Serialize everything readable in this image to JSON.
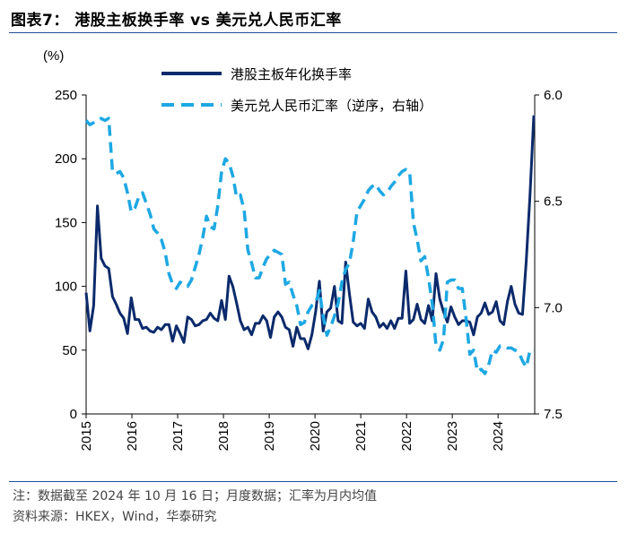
{
  "header": {
    "title": "图表7：  港股主板换手率 vs 美元兑人民币汇率"
  },
  "footer": {
    "note": "注：数据截至 2024 年 10 月 16 日；月度数据；汇率为月内均值",
    "source": "资料来源：HKEX，Wind，华泰研究"
  },
  "colors": {
    "turnover": "#0b2a6b",
    "fx": "#1da8e3",
    "rule": "#1f4e9a"
  },
  "chart_data": {
    "type": "line",
    "title": "港股主板换手率 vs 美元兑人民币汇率",
    "ylabel": "(%)",
    "ylim": [
      0,
      250
    ],
    "yticks": [
      "0",
      "50",
      "100",
      "150",
      "200",
      "250"
    ],
    "y2lim": [
      6.0,
      7.5
    ],
    "y2_inverted": true,
    "y2ticks": [
      "6.0",
      "6.5",
      "7.0",
      "7.5"
    ],
    "x_start": 2015.0,
    "x_end": 2024.8,
    "xticks": [
      "2015",
      "2016",
      "2017",
      "2018",
      "2019",
      "2020",
      "2021",
      "2022",
      "2023",
      "2024"
    ],
    "series": [
      {
        "name": "港股主板年化换手率",
        "axis": "left",
        "style": "solid",
        "values": [
          95,
          65,
          85,
          163,
          122,
          116,
          114,
          92,
          86,
          79,
          75,
          63,
          91,
          74,
          74,
          67,
          68,
          65,
          64,
          68,
          66,
          70,
          70,
          57,
          69,
          63,
          56,
          76,
          74,
          69,
          70,
          73,
          74,
          79,
          75,
          73,
          89,
          74,
          108,
          100,
          87,
          73,
          66,
          68,
          62,
          71,
          71,
          77,
          73,
          60,
          76,
          80,
          76,
          68,
          66,
          53,
          68,
          59,
          59,
          51,
          62,
          80,
          104,
          65,
          80,
          83,
          100,
          73,
          71,
          119,
          94,
          72,
          69,
          71,
          67,
          90,
          80,
          76,
          68,
          71,
          67,
          73,
          67,
          75,
          75,
          112,
          71,
          74,
          86,
          74,
          71,
          85,
          73,
          110,
          90,
          80,
          72,
          84,
          76,
          70,
          73,
          73,
          72,
          62,
          76,
          79,
          87,
          78,
          80,
          88,
          73,
          70,
          88,
          100,
          86,
          79,
          78,
          120,
          172,
          234
        ]
      },
      {
        "name": "美元兑人民币汇率（逆序，右轴）",
        "axis": "right",
        "style": "dashed",
        "values": [
          6.12,
          6.14,
          6.13,
          6.12,
          6.11,
          6.12,
          6.11,
          6.36,
          6.37,
          6.36,
          6.39,
          6.46,
          6.55,
          6.53,
          6.48,
          6.46,
          6.51,
          6.56,
          6.63,
          6.65,
          6.68,
          6.74,
          6.84,
          6.89,
          6.91,
          6.88,
          6.89,
          6.9,
          6.87,
          6.81,
          6.75,
          6.67,
          6.57,
          6.62,
          6.63,
          6.52,
          6.36,
          6.3,
          6.32,
          6.38,
          6.48,
          6.47,
          6.54,
          6.73,
          6.79,
          6.86,
          6.86,
          6.81,
          6.77,
          6.75,
          6.73,
          6.74,
          6.75,
          6.89,
          6.88,
          6.94,
          6.99,
          7.08,
          7.07,
          7.02,
          6.99,
          6.98,
          6.92,
          7.04,
          7.13,
          7.09,
          7.04,
          6.98,
          6.88,
          6.82,
          6.79,
          6.69,
          6.55,
          6.52,
          6.49,
          6.45,
          6.43,
          6.42,
          6.45,
          6.47,
          6.46,
          6.43,
          6.41,
          6.38,
          6.36,
          6.35,
          6.36,
          6.6,
          6.68,
          6.78,
          6.76,
          6.86,
          6.98,
          7.18,
          7.2,
          7.15,
          6.88,
          6.87,
          6.87,
          6.91,
          6.91,
          7.05,
          7.22,
          7.2,
          7.3,
          7.29,
          7.31,
          7.27,
          7.2,
          7.21,
          7.18,
          7.18,
          7.19,
          7.19,
          7.2,
          7.21,
          7.25,
          7.28,
          7.2,
          7.2
        ]
      }
    ]
  }
}
